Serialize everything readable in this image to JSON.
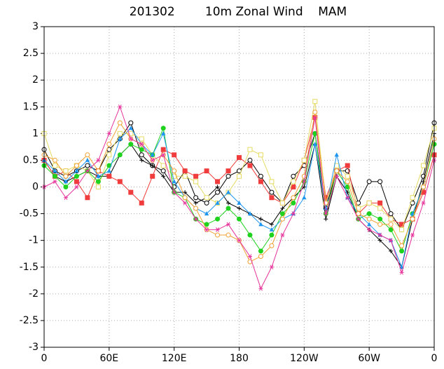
{
  "chart_data": {
    "type": "line",
    "title": "201302        10m Zonal Wind    MAM",
    "x": [
      0,
      10,
      20,
      30,
      40,
      50,
      60,
      70,
      80,
      90,
      100,
      110,
      120,
      130,
      140,
      150,
      160,
      170,
      180,
      190,
      200,
      210,
      220,
      230,
      240,
      250,
      260,
      270,
      280,
      290,
      300,
      310,
      320,
      330,
      340,
      350,
      360
    ],
    "xlim": [
      0,
      360
    ],
    "xticks": [
      0,
      {
        "value": 60,
        "label": "60E"
      },
      {
        "value": 120,
        "label": "120E"
      },
      180,
      {
        "value": 240,
        "label": "120W"
      },
      {
        "value": 300,
        "label": "60W"
      },
      {
        "value": 360,
        "label": "0"
      }
    ],
    "ylim": [
      -3,
      3
    ],
    "yticks": [
      -3,
      -2.5,
      -2,
      -1.5,
      -1,
      -0.5,
      0,
      0.5,
      1,
      1.5,
      2,
      2.5,
      3
    ],
    "grid": true,
    "series": [
      {
        "color": "#000000",
        "marker": "circle-open",
        "values": [
          0.7,
          0.3,
          0.2,
          0.3,
          0.4,
          0.3,
          0.7,
          0.9,
          1.2,
          0.6,
          0.4,
          0.3,
          0,
          0.3,
          -0.2,
          -0.3,
          -0.1,
          0.2,
          0.3,
          0.5,
          0.2,
          -0.1,
          -0.3,
          0.2,
          0.4,
          1.0,
          -0.4,
          0.3,
          0.3,
          -0.3,
          0.1,
          0.1,
          -0.5,
          -0.8,
          -0.3,
          0.2,
          1.2
        ]
      },
      {
        "color": "#000000",
        "marker": "plus",
        "values": [
          0.5,
          0.2,
          0.1,
          0.2,
          0.3,
          0.2,
          0.2,
          0.6,
          0.8,
          0.5,
          0.4,
          0.2,
          -0.1,
          -0.1,
          -0.3,
          -0.2,
          0,
          -0.3,
          -0.4,
          -0.5,
          -0.6,
          -0.7,
          -0.4,
          -0.2,
          0,
          0.8,
          -0.6,
          0.2,
          -0.1,
          -0.6,
          -0.8,
          -1.0,
          -1.2,
          -1.5,
          -0.6,
          0.1,
          1.0
        ]
      },
      {
        "color": "#f03c3c",
        "marker": "square",
        "values": [
          0.5,
          0.2,
          0.3,
          0.1,
          -0.2,
          0.3,
          0.2,
          0.1,
          -0.1,
          -0.3,
          0.2,
          0.7,
          0.6,
          0.3,
          0.2,
          0.3,
          0.1,
          0.3,
          0.55,
          0.4,
          0.1,
          -0.2,
          -0.3,
          0,
          0.5,
          1.3,
          -0.2,
          0.3,
          0.4,
          -0.5,
          -0.3,
          -0.3,
          -0.6,
          -0.7,
          -0.6,
          -0.1,
          0.6
        ]
      },
      {
        "color": "#e6dc64",
        "marker": "square-open",
        "values": [
          1.0,
          0.4,
          0.3,
          0.4,
          0.3,
          0.0,
          0.6,
          1.0,
          1.0,
          0.9,
          0.6,
          0.4,
          0.2,
          0.2,
          0.1,
          -0.2,
          -0.3,
          -0.1,
          0.2,
          0.7,
          0.6,
          0.1,
          -0.3,
          0.1,
          0.5,
          1.6,
          -0.3,
          0.4,
          0.2,
          -0.4,
          -0.3,
          -0.4,
          -0.6,
          -0.8,
          -0.2,
          0.4,
          1.1
        ]
      },
      {
        "color": "#1ed21e",
        "marker": "circle",
        "values": [
          0.4,
          0.2,
          0.0,
          0.2,
          0.3,
          0.1,
          0.4,
          0.6,
          0.8,
          0.7,
          0.6,
          1.1,
          -0.1,
          -0.2,
          -0.6,
          -0.7,
          -0.6,
          -0.4,
          -0.6,
          -0.9,
          -1.2,
          -0.9,
          -0.5,
          -0.3,
          0.1,
          1.0,
          -0.5,
          0.3,
          0,
          -0.6,
          -0.5,
          -0.6,
          -0.8,
          -1.2,
          -0.5,
          0,
          0.8
        ]
      },
      {
        "color": "#1e96f0",
        "marker": "triangle",
        "values": [
          0.5,
          0.3,
          0.1,
          0.3,
          0.5,
          0.2,
          0.3,
          0.9,
          1.1,
          0.8,
          0.6,
          1.0,
          0.1,
          -0.2,
          -0.4,
          -0.5,
          -0.3,
          -0.1,
          -0.3,
          -0.5,
          -0.7,
          -0.8,
          -0.6,
          -0.5,
          -0.2,
          0.8,
          -0.4,
          0.6,
          -0.2,
          -0.5,
          -0.7,
          -0.9,
          -1.0,
          -1.5,
          -0.5,
          0,
          0.9
        ]
      },
      {
        "color": "#f0a032",
        "marker": "circle-open",
        "values": [
          0.6,
          0.5,
          0.2,
          0.4,
          0.6,
          0.3,
          0.8,
          1.2,
          0.9,
          0.8,
          0.5,
          0.6,
          0.3,
          -0.2,
          -0.4,
          -0.8,
          -0.9,
          -0.9,
          -1.0,
          -1.4,
          -1.3,
          -1.1,
          -0.6,
          -0.2,
          0.2,
          1.4,
          -0.3,
          0.3,
          0.1,
          -0.5,
          -0.6,
          -0.7,
          -0.7,
          -1.1,
          -0.6,
          0,
          0.9
        ]
      },
      {
        "color": "#e6329b",
        "marker": "star",
        "values": [
          0.0,
          0.1,
          -0.2,
          0.0,
          0.3,
          0.5,
          1.0,
          1.5,
          0.9,
          0.8,
          0.5,
          0.6,
          -0.1,
          -0.3,
          -0.6,
          -0.8,
          -0.8,
          -0.7,
          -1.0,
          -1.3,
          -1.9,
          -1.5,
          -0.9,
          -0.5,
          0.1,
          1.3,
          -0.5,
          0.2,
          -0.2,
          -0.6,
          -0.8,
          -0.9,
          -1.0,
          -1.6,
          -0.9,
          -0.3,
          0.5
        ]
      }
    ]
  }
}
